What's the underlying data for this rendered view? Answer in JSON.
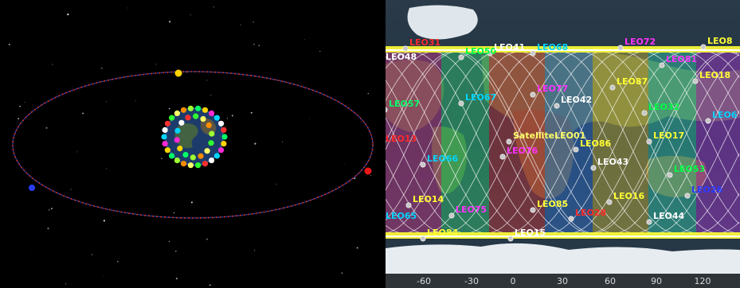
{
  "orbit_view": {
    "colors": {
      "space": "#000000",
      "orbit_red": "#d23a3a",
      "orbit_blue": "#3a4cd6",
      "satellite_yellow": "#ffd400",
      "satellite_red": "#e81818",
      "satellite_blue": "#2a3cff"
    },
    "earth_satellite_colors": [
      "#00ff66",
      "#ffd400",
      "#ff2ad4",
      "#00d4ff",
      "#ffffff",
      "#ff3030",
      "#30ff30",
      "#ffff66",
      "#ff8c00",
      "#a0ff30"
    ]
  },
  "ground_track": {
    "colors": {
      "equatorial_band": "#ffff33",
      "track_white": "#ffffff",
      "ice": "#e8eef2",
      "ocean": "#2c3e4e"
    },
    "satellite_labels": [
      {
        "text": "LEO31",
        "color": "#ff2a2a"
      },
      {
        "text": "LEO48",
        "color": "#ffffff"
      },
      {
        "text": "LEO50",
        "color": "#00ff44"
      },
      {
        "text": "LEO41",
        "color": "#ffffff"
      },
      {
        "text": "LEO68",
        "color": "#00d4ff"
      },
      {
        "text": "LEO72",
        "color": "#ff33ff"
      },
      {
        "text": "LEO8",
        "color": "#ffff33"
      },
      {
        "text": "LEO81",
        "color": "#ff33ff"
      },
      {
        "text": "LEO57",
        "color": "#00ff66"
      },
      {
        "text": "LEO67",
        "color": "#00d4ff"
      },
      {
        "text": "LEO77",
        "color": "#ff33ff"
      },
      {
        "text": "LEO87",
        "color": "#ffff33"
      },
      {
        "text": "LEO18",
        "color": "#ffff33"
      },
      {
        "text": "LEO42",
        "color": "#ffffff"
      },
      {
        "text": "LEO32",
        "color": "#00ff44"
      },
      {
        "text": "LEO6",
        "color": "#00d4ff"
      },
      {
        "text": "LEO13",
        "color": "#ff2a2a"
      },
      {
        "text": "SatelliteLEO01",
        "color": "#ffff66"
      },
      {
        "text": "LEO86",
        "color": "#ffff33"
      },
      {
        "text": "LEO17",
        "color": "#ffff33"
      },
      {
        "text": "LEO76",
        "color": "#ff33ff"
      },
      {
        "text": "LEO66",
        "color": "#00d4ff"
      },
      {
        "text": "LEO43",
        "color": "#ffffff"
      },
      {
        "text": "LEO53",
        "color": "#00ff44"
      },
      {
        "text": "LEO26",
        "color": "#2a3cff"
      },
      {
        "text": "LEO14",
        "color": "#ffff33"
      },
      {
        "text": "LEO16",
        "color": "#ffff33"
      },
      {
        "text": "LEO85",
        "color": "#ffff33"
      },
      {
        "text": "LEO75",
        "color": "#ff33ff"
      },
      {
        "text": "LEO28",
        "color": "#ff2a2a"
      },
      {
        "text": "LEO65",
        "color": "#00d4ff"
      },
      {
        "text": "LEO44",
        "color": "#ffffff"
      },
      {
        "text": "LEO84",
        "color": "#ffff33"
      },
      {
        "text": "LEO15",
        "color": "#ffffff"
      }
    ],
    "longitude_ticks": [
      "-60",
      "-30",
      "0",
      "30",
      "60",
      "90",
      "120"
    ]
  }
}
